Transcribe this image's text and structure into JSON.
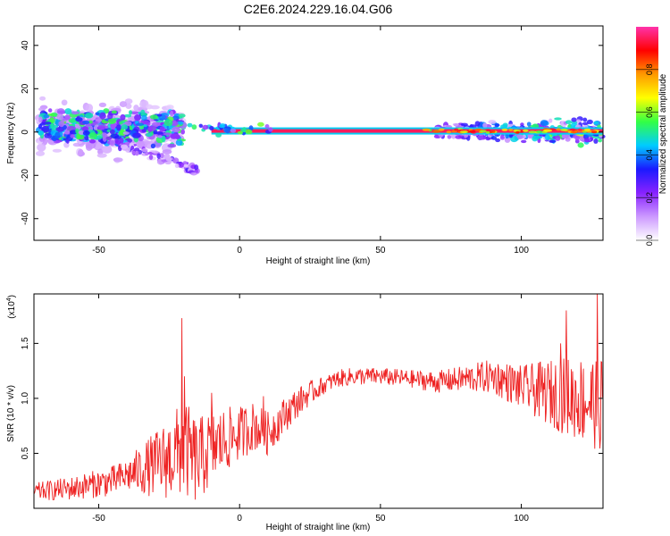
{
  "title": "C2E6.2024.229.16.04.G06",
  "colors": {
    "snr_line": "#ee2222",
    "colormap": [
      "#ffffff",
      "#cc99ff",
      "#8822ff",
      "#1a1aff",
      "#00ccff",
      "#33ff44",
      "#ffff00",
      "#ff9900",
      "#ff0000",
      "#ff33aa"
    ]
  },
  "chart_data": [
    {
      "type": "heatmap",
      "title": "C2E6.2024.229.16.04.G06",
      "xlabel": "Height of straight line (km)",
      "ylabel": "Frequency (Hz)",
      "xlim": [
        -73,
        129
      ],
      "ylim": [
        -50,
        49
      ],
      "xticks": [
        -50,
        0,
        50,
        100
      ],
      "xtick_labels": [
        "-50",
        "0",
        "50",
        "100"
      ],
      "yticks": [
        -40,
        -20,
        0,
        20,
        40
      ],
      "ytick_labels": [
        "-40",
        "-20",
        "0",
        "20",
        "40"
      ],
      "colorbar": {
        "label": "Normalized spectral amplitude",
        "range": [
          0,
          1
        ],
        "ticks": [
          0.0,
          0.2,
          0.4,
          0.6,
          0.8
        ],
        "tick_labels": [
          "0.0",
          "0.2",
          "0.4",
          "0.6",
          "0.8"
        ]
      },
      "features": [
        {
          "name": "broadband-noise",
          "x_range": [
            -71,
            -20
          ],
          "freq_center": 2,
          "freq_spread": 9,
          "amplitude": 0.35
        },
        {
          "name": "drifting-branch",
          "x_start": -48,
          "x_end": -15,
          "freq_start": -3,
          "freq_end": -18,
          "amplitude": 0.25
        },
        {
          "name": "carrier-line",
          "x_range": [
            -10,
            129
          ],
          "freq": 0.5,
          "amplitude": 0.95
        },
        {
          "name": "high-noise",
          "x_range": [
            70,
            129
          ],
          "freq_center": 0.5,
          "freq_spread": 3,
          "amplitude": 0.45
        }
      ]
    },
    {
      "type": "line",
      "xlabel": "Height of straight line (km)",
      "ylabel": "SNR (10 * v/v)",
      "multiplier_label": "(x10",
      "multiplier_exp": "4",
      "multiplier_close": ")",
      "xlim": [
        -73,
        129
      ],
      "ylim": [
        0.0,
        1.95
      ],
      "xticks": [
        -50,
        0,
        50,
        100
      ],
      "xtick_labels": [
        "-50",
        "0",
        "50",
        "100"
      ],
      "yticks": [
        0.5,
        1.0,
        1.5
      ],
      "ytick_labels": [
        "0.5",
        "1.0",
        "1.5"
      ],
      "series": [
        {
          "name": "SNR",
          "trend_x": [
            -73,
            -60,
            -45,
            -35,
            -25,
            -20,
            -15,
            -10,
            -5,
            0,
            5,
            10,
            15,
            20,
            25,
            30,
            35,
            40,
            50,
            60,
            70,
            80,
            90,
            100,
            110,
            120,
            129
          ],
          "trend_y": [
            0.15,
            0.18,
            0.25,
            0.35,
            0.45,
            0.55,
            0.42,
            0.55,
            0.62,
            0.68,
            0.75,
            0.68,
            0.82,
            0.95,
            1.05,
            1.12,
            1.18,
            1.2,
            1.2,
            1.18,
            1.15,
            1.18,
            1.2,
            1.1,
            1.05,
            1.0,
            0.95
          ],
          "noise_x": [
            -73,
            -40,
            -20,
            0,
            10,
            30,
            60,
            80,
            100,
            115,
            129
          ],
          "noise_amp": [
            0.08,
            0.15,
            0.45,
            0.25,
            0.2,
            0.08,
            0.08,
            0.12,
            0.2,
            0.35,
            0.45
          ],
          "spikes": [
            {
              "x": -20.5,
              "y": 1.73
            },
            {
              "x": -19.5,
              "y": 1.2
            },
            {
              "x": -10,
              "y": 1.05
            },
            {
              "x": 8.5,
              "y": 1.02
            },
            {
              "x": 114,
              "y": 1.5
            },
            {
              "x": 116,
              "y": 1.8
            },
            {
              "x": 127,
              "y": 1.97
            }
          ]
        }
      ]
    }
  ]
}
